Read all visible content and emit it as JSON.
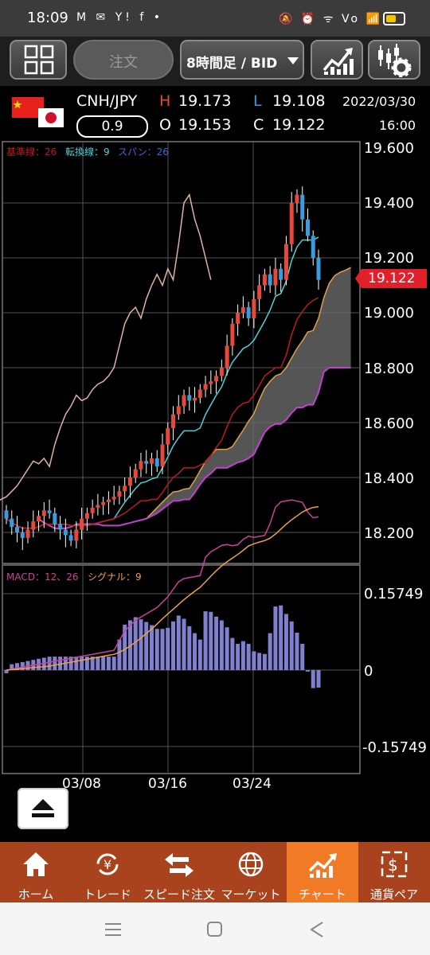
{
  "status_bar": {
    "time": "18:09",
    "left_icons": "M ✉ Y! f •",
    "right_icons": "🔕 ⏰ ᯤ Vo 📶"
  },
  "toolbar": {
    "menu_icon": "grid-icon",
    "order_label": "注文",
    "period_label": "8時間足 / BID",
    "chart_type_icon": "line-chart-icon",
    "settings_icon": "chart-settings-icon"
  },
  "quote": {
    "pair": "CNH/JPY",
    "spread": "0.9",
    "high_label": "H",
    "high": "19.173",
    "open_label": "O",
    "open": "19.153",
    "low_label": "L",
    "low": "19.108",
    "close_label": "C",
    "close": "19.122",
    "date": "2022/03/30",
    "time": "16:00",
    "flags": [
      "china-flag-icon",
      "japan-flag-icon"
    ]
  },
  "chart": {
    "legend_kijun": "基準線：26",
    "legend_tenkan": "転換線：9",
    "legend_span": "スパン：26",
    "current_price": "19.122",
    "y_ticks": [
      "19.600",
      "19.400",
      "19.200",
      "19.000",
      "18.800",
      "18.600",
      "18.400",
      "18.200"
    ],
    "macd_legend_macd": "MACD：12、26",
    "macd_legend_signal": "シグナル：9",
    "macd_ticks": [
      "0.15749",
      "0",
      "-0.15749"
    ],
    "x_ticks": [
      "03/08",
      "03/16",
      "03/24"
    ],
    "colors": {
      "up": "#e8483a",
      "down": "#3a9ce0",
      "kijun": "#c0191e",
      "tenkan": "#4fd0d8",
      "chikou": "#e0b0a8",
      "span_a": "#e0a040",
      "span_b": "#c040d0",
      "cloud": "#6a6a6a",
      "macd": "#d0409a",
      "signal": "#f0a040",
      "hist": "#8080d0"
    }
  },
  "bottom_nav": {
    "items": [
      {
        "label": "ホーム",
        "icon": "home-icon"
      },
      {
        "label": "トレード",
        "icon": "trade-icon"
      },
      {
        "label": "スピード注文",
        "icon": "speed-order-icon"
      },
      {
        "label": "マーケット",
        "icon": "globe-icon"
      },
      {
        "label": "チャート",
        "icon": "chart-icon"
      },
      {
        "label": "通貨ペア",
        "icon": "currency-pair-icon"
      }
    ]
  }
}
